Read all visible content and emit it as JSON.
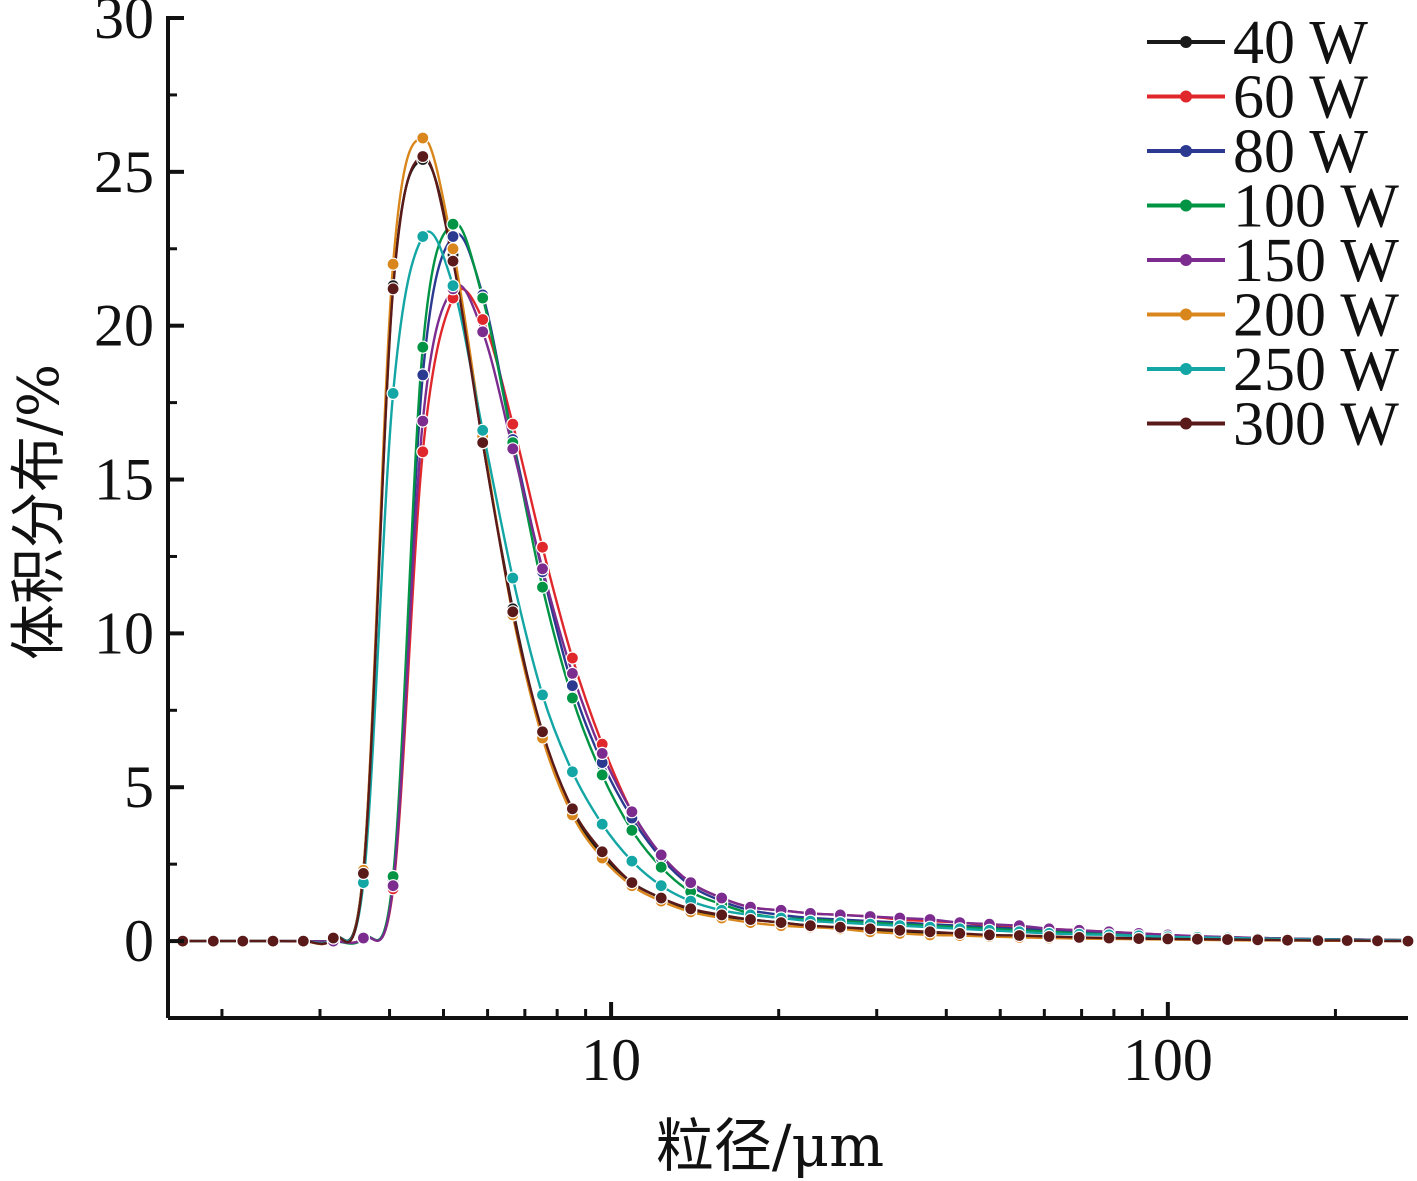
{
  "chart_data": {
    "type": "line",
    "xlabel": "粒径/μm",
    "ylabel": "体积分布/%",
    "xscale": "log",
    "xlim": [
      1.6,
      270
    ],
    "ylim": [
      -2.5,
      30
    ],
    "xticks_labeled": [
      "10",
      "100"
    ],
    "yticks": [
      "0",
      "5",
      "10",
      "15",
      "20",
      "25",
      "30"
    ],
    "grid": false,
    "legend_position": "top-right",
    "series": [
      {
        "name": "40 W",
        "color": "#1a1a1a",
        "x": [
          1.7,
          1.93,
          2.18,
          2.47,
          2.8,
          3.17,
          3.59,
          4.06,
          4.59,
          5.2,
          5.88,
          6.66,
          7.53,
          8.52,
          9.64,
          10.9,
          12.3,
          13.9,
          15.8,
          17.8,
          20.2,
          22.8,
          25.8,
          29.2,
          33.0,
          37.4,
          42.3,
          47.8,
          54.1,
          61.2,
          69.3,
          78.4,
          88.7,
          100,
          113,
          128,
          145,
          164,
          186,
          210,
          238,
          270
        ],
        "y": [
          0,
          0,
          0,
          0,
          0,
          0.1,
          2.3,
          21.3,
          25.4,
          22.3,
          16.2,
          10.8,
          6.7,
          4.2,
          2.8,
          1.9,
          1.4,
          1.0,
          0.8,
          0.7,
          0.6,
          0.5,
          0.4,
          0.35,
          0.3,
          0.25,
          0.2,
          0.2,
          0.15,
          0.15,
          0.1,
          0.1,
          0.1,
          0.08,
          0.06,
          0.05,
          0.04,
          0.03,
          0.02,
          0.02,
          0.01,
          0
        ]
      },
      {
        "name": "60 W",
        "color": "#e0282c",
        "x": [
          1.7,
          1.93,
          2.18,
          2.47,
          2.8,
          3.17,
          3.59,
          4.06,
          4.59,
          5.2,
          5.88,
          6.66,
          7.53,
          8.52,
          9.64,
          10.9,
          12.3,
          13.9,
          15.8,
          17.8,
          20.2,
          22.8,
          25.8,
          29.2,
          33.0,
          37.4,
          42.3,
          47.8,
          54.1,
          61.2,
          69.3,
          78.4,
          88.7,
          100,
          113,
          128,
          145,
          164,
          186,
          210,
          238,
          270
        ],
        "y": [
          0,
          0,
          0,
          0,
          0,
          0,
          0.1,
          1.7,
          15.9,
          20.9,
          20.2,
          16.8,
          12.8,
          9.2,
          6.4,
          4.2,
          2.8,
          1.9,
          1.4,
          1.1,
          1.0,
          0.9,
          0.85,
          0.8,
          0.7,
          0.65,
          0.6,
          0.5,
          0.45,
          0.4,
          0.35,
          0.3,
          0.25,
          0.2,
          0.15,
          0.12,
          0.1,
          0.08,
          0.06,
          0.05,
          0.04,
          0.03
        ]
      },
      {
        "name": "80 W",
        "color": "#2b3990",
        "x": [
          1.7,
          1.93,
          2.18,
          2.47,
          2.8,
          3.17,
          3.59,
          4.06,
          4.59,
          5.2,
          5.88,
          6.66,
          7.53,
          8.52,
          9.64,
          10.9,
          12.3,
          13.9,
          15.8,
          17.8,
          20.2,
          22.8,
          25.8,
          29.2,
          33.0,
          37.4,
          42.3,
          47.8,
          54.1,
          61.2,
          69.3,
          78.4,
          88.7,
          100,
          113,
          128,
          145,
          164,
          186,
          210,
          238,
          270
        ],
        "y": [
          0,
          0,
          0,
          0,
          0,
          0,
          0.1,
          2.0,
          18.4,
          22.9,
          21.0,
          16.3,
          12.0,
          8.3,
          5.8,
          4.0,
          2.7,
          1.8,
          1.3,
          1.0,
          0.85,
          0.75,
          0.7,
          0.65,
          0.6,
          0.55,
          0.5,
          0.45,
          0.4,
          0.35,
          0.3,
          0.25,
          0.2,
          0.18,
          0.15,
          0.12,
          0.1,
          0.08,
          0.06,
          0.05,
          0.04,
          0.03
        ]
      },
      {
        "name": "100 W",
        "color": "#009444",
        "x": [
          1.7,
          1.93,
          2.18,
          2.47,
          2.8,
          3.17,
          3.59,
          4.06,
          4.59,
          5.2,
          5.88,
          6.66,
          7.53,
          8.52,
          9.64,
          10.9,
          12.3,
          13.9,
          15.8,
          17.8,
          20.2,
          22.8,
          25.8,
          29.2,
          33.0,
          37.4,
          42.3,
          47.8,
          54.1,
          61.2,
          69.3,
          78.4,
          88.7,
          100,
          113,
          128,
          145,
          164,
          186,
          210,
          238,
          270
        ],
        "y": [
          0,
          0,
          0,
          0,
          0,
          0,
          0.1,
          2.1,
          19.3,
          23.3,
          20.9,
          16.2,
          11.5,
          7.9,
          5.4,
          3.6,
          2.4,
          1.6,
          1.2,
          0.9,
          0.75,
          0.7,
          0.65,
          0.6,
          0.55,
          0.5,
          0.45,
          0.4,
          0.35,
          0.3,
          0.25,
          0.22,
          0.2,
          0.17,
          0.14,
          0.12,
          0.1,
          0.08,
          0.06,
          0.05,
          0.04,
          0.03
        ]
      },
      {
        "name": "150 W",
        "color": "#7b2c8e",
        "x": [
          1.7,
          1.93,
          2.18,
          2.47,
          2.8,
          3.17,
          3.59,
          4.06,
          4.59,
          5.2,
          5.88,
          6.66,
          7.53,
          8.52,
          9.64,
          10.9,
          12.3,
          13.9,
          15.8,
          17.8,
          20.2,
          22.8,
          25.8,
          29.2,
          33.0,
          37.4,
          42.3,
          47.8,
          54.1,
          61.2,
          69.3,
          78.4,
          88.7,
          100,
          113,
          128,
          145,
          164,
          186,
          210,
          238,
          270
        ],
        "y": [
          0,
          0,
          0,
          0,
          0,
          0,
          0.1,
          1.8,
          16.9,
          21.2,
          19.8,
          16.0,
          12.1,
          8.7,
          6.1,
          4.2,
          2.8,
          1.9,
          1.4,
          1.1,
          1.0,
          0.9,
          0.85,
          0.8,
          0.75,
          0.7,
          0.6,
          0.55,
          0.5,
          0.4,
          0.35,
          0.3,
          0.25,
          0.2,
          0.16,
          0.13,
          0.1,
          0.08,
          0.06,
          0.05,
          0.04,
          0.03
        ]
      },
      {
        "name": "200 W",
        "color": "#d9861c",
        "x": [
          1.7,
          1.93,
          2.18,
          2.47,
          2.8,
          3.17,
          3.59,
          4.06,
          4.59,
          5.2,
          5.88,
          6.66,
          7.53,
          8.52,
          9.64,
          10.9,
          12.3,
          13.9,
          15.8,
          17.8,
          20.2,
          22.8,
          25.8,
          29.2,
          33.0,
          37.4,
          42.3,
          47.8,
          54.1,
          61.2,
          69.3,
          78.4,
          88.7,
          100,
          113,
          128,
          145,
          164,
          186,
          210,
          238,
          270
        ],
        "y": [
          0,
          0,
          0,
          0,
          0,
          0.1,
          2.3,
          22.0,
          26.1,
          22.5,
          16.4,
          10.6,
          6.6,
          4.1,
          2.7,
          1.8,
          1.3,
          0.95,
          0.75,
          0.6,
          0.5,
          0.45,
          0.4,
          0.3,
          0.25,
          0.2,
          0.18,
          0.15,
          0.12,
          0.1,
          0.08,
          0.07,
          0.06,
          0.05,
          0.04,
          0.03,
          0.02,
          0.02,
          0.01,
          0.01,
          0,
          0
        ]
      },
      {
        "name": "250 W",
        "color": "#13a6a4",
        "x": [
          1.7,
          1.93,
          2.18,
          2.47,
          2.8,
          3.17,
          3.59,
          4.06,
          4.59,
          5.2,
          5.88,
          6.66,
          7.53,
          8.52,
          9.64,
          10.9,
          12.3,
          13.9,
          15.8,
          17.8,
          20.2,
          22.8,
          25.8,
          29.2,
          33.0,
          37.4,
          42.3,
          47.8,
          54.1,
          61.2,
          69.3,
          78.4,
          88.7,
          100,
          113,
          128,
          145,
          164,
          186,
          210,
          238,
          270
        ],
        "y": [
          0,
          0,
          0,
          0,
          0,
          0.1,
          1.9,
          17.8,
          22.9,
          21.3,
          16.6,
          11.8,
          8.0,
          5.5,
          3.8,
          2.6,
          1.8,
          1.3,
          1.0,
          0.85,
          0.75,
          0.65,
          0.6,
          0.55,
          0.5,
          0.45,
          0.4,
          0.35,
          0.3,
          0.25,
          0.22,
          0.2,
          0.17,
          0.14,
          0.12,
          0.1,
          0.08,
          0.06,
          0.05,
          0.04,
          0.03,
          0.02
        ]
      },
      {
        "name": "300 W",
        "color": "#5a1a1a",
        "x": [
          1.7,
          1.93,
          2.18,
          2.47,
          2.8,
          3.17,
          3.59,
          4.06,
          4.59,
          5.2,
          5.88,
          6.66,
          7.53,
          8.52,
          9.64,
          10.9,
          12.3,
          13.9,
          15.8,
          17.8,
          20.2,
          22.8,
          25.8,
          29.2,
          33.0,
          37.4,
          42.3,
          47.8,
          54.1,
          61.2,
          69.3,
          78.4,
          88.7,
          100,
          113,
          128,
          145,
          164,
          186,
          210,
          238,
          270
        ],
        "y": [
          0,
          0,
          0,
          0,
          0,
          0.1,
          2.2,
          21.2,
          25.5,
          22.1,
          16.2,
          10.7,
          6.8,
          4.3,
          2.9,
          1.9,
          1.4,
          1.05,
          0.85,
          0.7,
          0.6,
          0.5,
          0.45,
          0.4,
          0.35,
          0.3,
          0.25,
          0.2,
          0.18,
          0.15,
          0.12,
          0.1,
          0.08,
          0.07,
          0.06,
          0.05,
          0.04,
          0.03,
          0.02,
          0.02,
          0.01,
          0
        ]
      }
    ]
  }
}
